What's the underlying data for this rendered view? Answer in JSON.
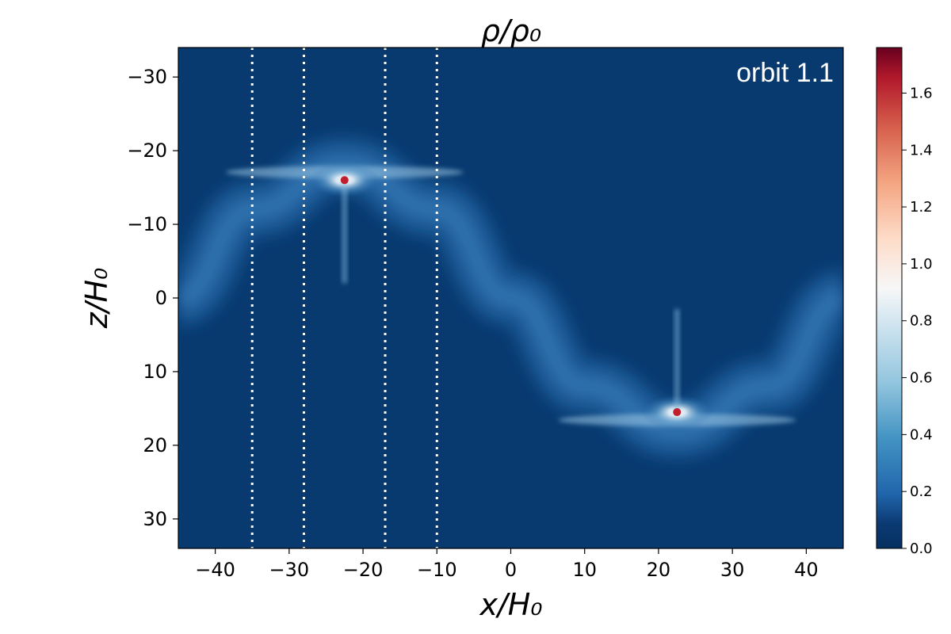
{
  "chart_data": {
    "type": "heatmap",
    "title": "ρ/ρ₀",
    "xlabel": "x/H₀",
    "ylabel": "z/H₀",
    "xlim": [
      -45,
      45
    ],
    "ylim": [
      34,
      -34
    ],
    "x_ticks": [
      -40,
      -30,
      -20,
      -10,
      0,
      10,
      20,
      30,
      40
    ],
    "y_ticks": [
      -30,
      -20,
      -10,
      0,
      10,
      20,
      30
    ],
    "annotation": "orbit 1.1",
    "vlines": {
      "x": [
        -35,
        -28,
        -17,
        -10
      ],
      "style": "dotted",
      "color": "#ffffff"
    },
    "colorbar": {
      "range": [
        0,
        1.76
      ],
      "ticks": [
        0.0,
        0.2,
        0.4,
        0.6,
        0.8,
        1.0,
        1.2,
        1.4,
        1.6
      ],
      "colormap": "RdBu_r"
    },
    "field": {
      "background_value": 0.05,
      "stream_ridge": {
        "description_points_x": [
          -45,
          -35,
          -22.5,
          -10,
          0,
          10,
          22.5,
          35,
          45
        ],
        "description_points_z": [
          0,
          -12,
          -18,
          -12,
          0,
          12,
          18,
          12,
          0
        ],
        "peak_value": 0.25
      },
      "sources": [
        {
          "x": -22.5,
          "z": -16,
          "peak_value": 1.76
        },
        {
          "x": 22.5,
          "z": 15.5,
          "peak_value": 1.76
        }
      ]
    }
  }
}
